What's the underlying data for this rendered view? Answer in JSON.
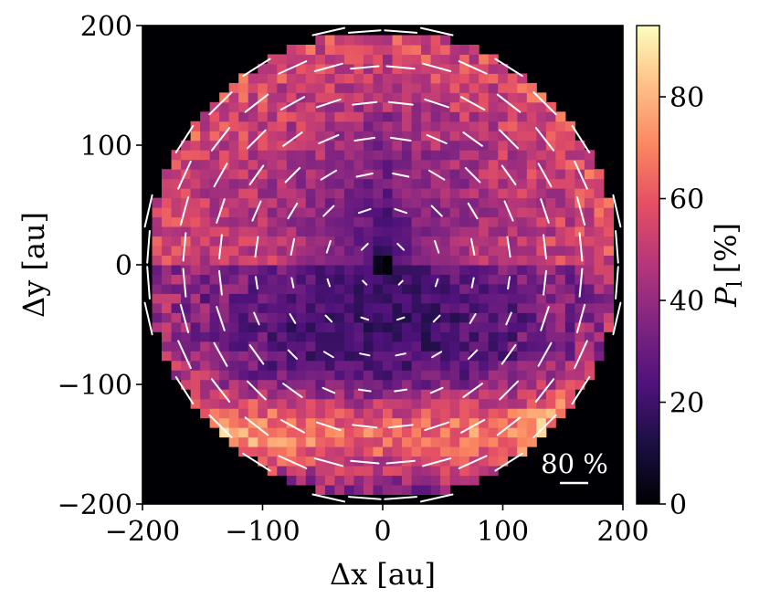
{
  "chart_data": {
    "type": "heatmap",
    "title": "",
    "xlabel": "Δx [au]",
    "ylabel": "Δy [au]",
    "xlim": [
      -200,
      200
    ],
    "ylim": [
      -200,
      200
    ],
    "x_ticks": [
      "−200",
      "−100",
      "0",
      "100",
      "200"
    ],
    "y_ticks": [
      "−200",
      "−100",
      "0",
      "100",
      "200"
    ],
    "x_tick_values": [
      -200,
      -100,
      0,
      100,
      200
    ],
    "y_tick_values": [
      -200,
      -100,
      0,
      100,
      200
    ],
    "grid": false,
    "colormap": "magma",
    "colorbar": {
      "label": "P_l [%]",
      "label_main": "P",
      "label_sub": "l",
      "label_unit": "[%]",
      "range": [
        0,
        94
      ],
      "ticks": [
        "0",
        "20",
        "40",
        "60",
        "80"
      ],
      "tick_values": [
        0,
        20,
        40,
        60,
        80
      ]
    },
    "map_region": {
      "shape": "disk",
      "radius_au": 200,
      "pixel_size_au": 8,
      "background": "#000004"
    },
    "polarization_map_summary": {
      "center_value_percent": 0,
      "southern_arc_value_percent": 62,
      "northern_rim_value_percent": 58,
      "central_south_value_percent": 18,
      "vector_pattern": "centro-symmetric (azimuthal)"
    },
    "scale_bar": {
      "label": "80 %",
      "value_percent": 80
    }
  },
  "colors": {
    "background": "#ffffff",
    "vector": "#ffffff",
    "axis": "#000000"
  }
}
